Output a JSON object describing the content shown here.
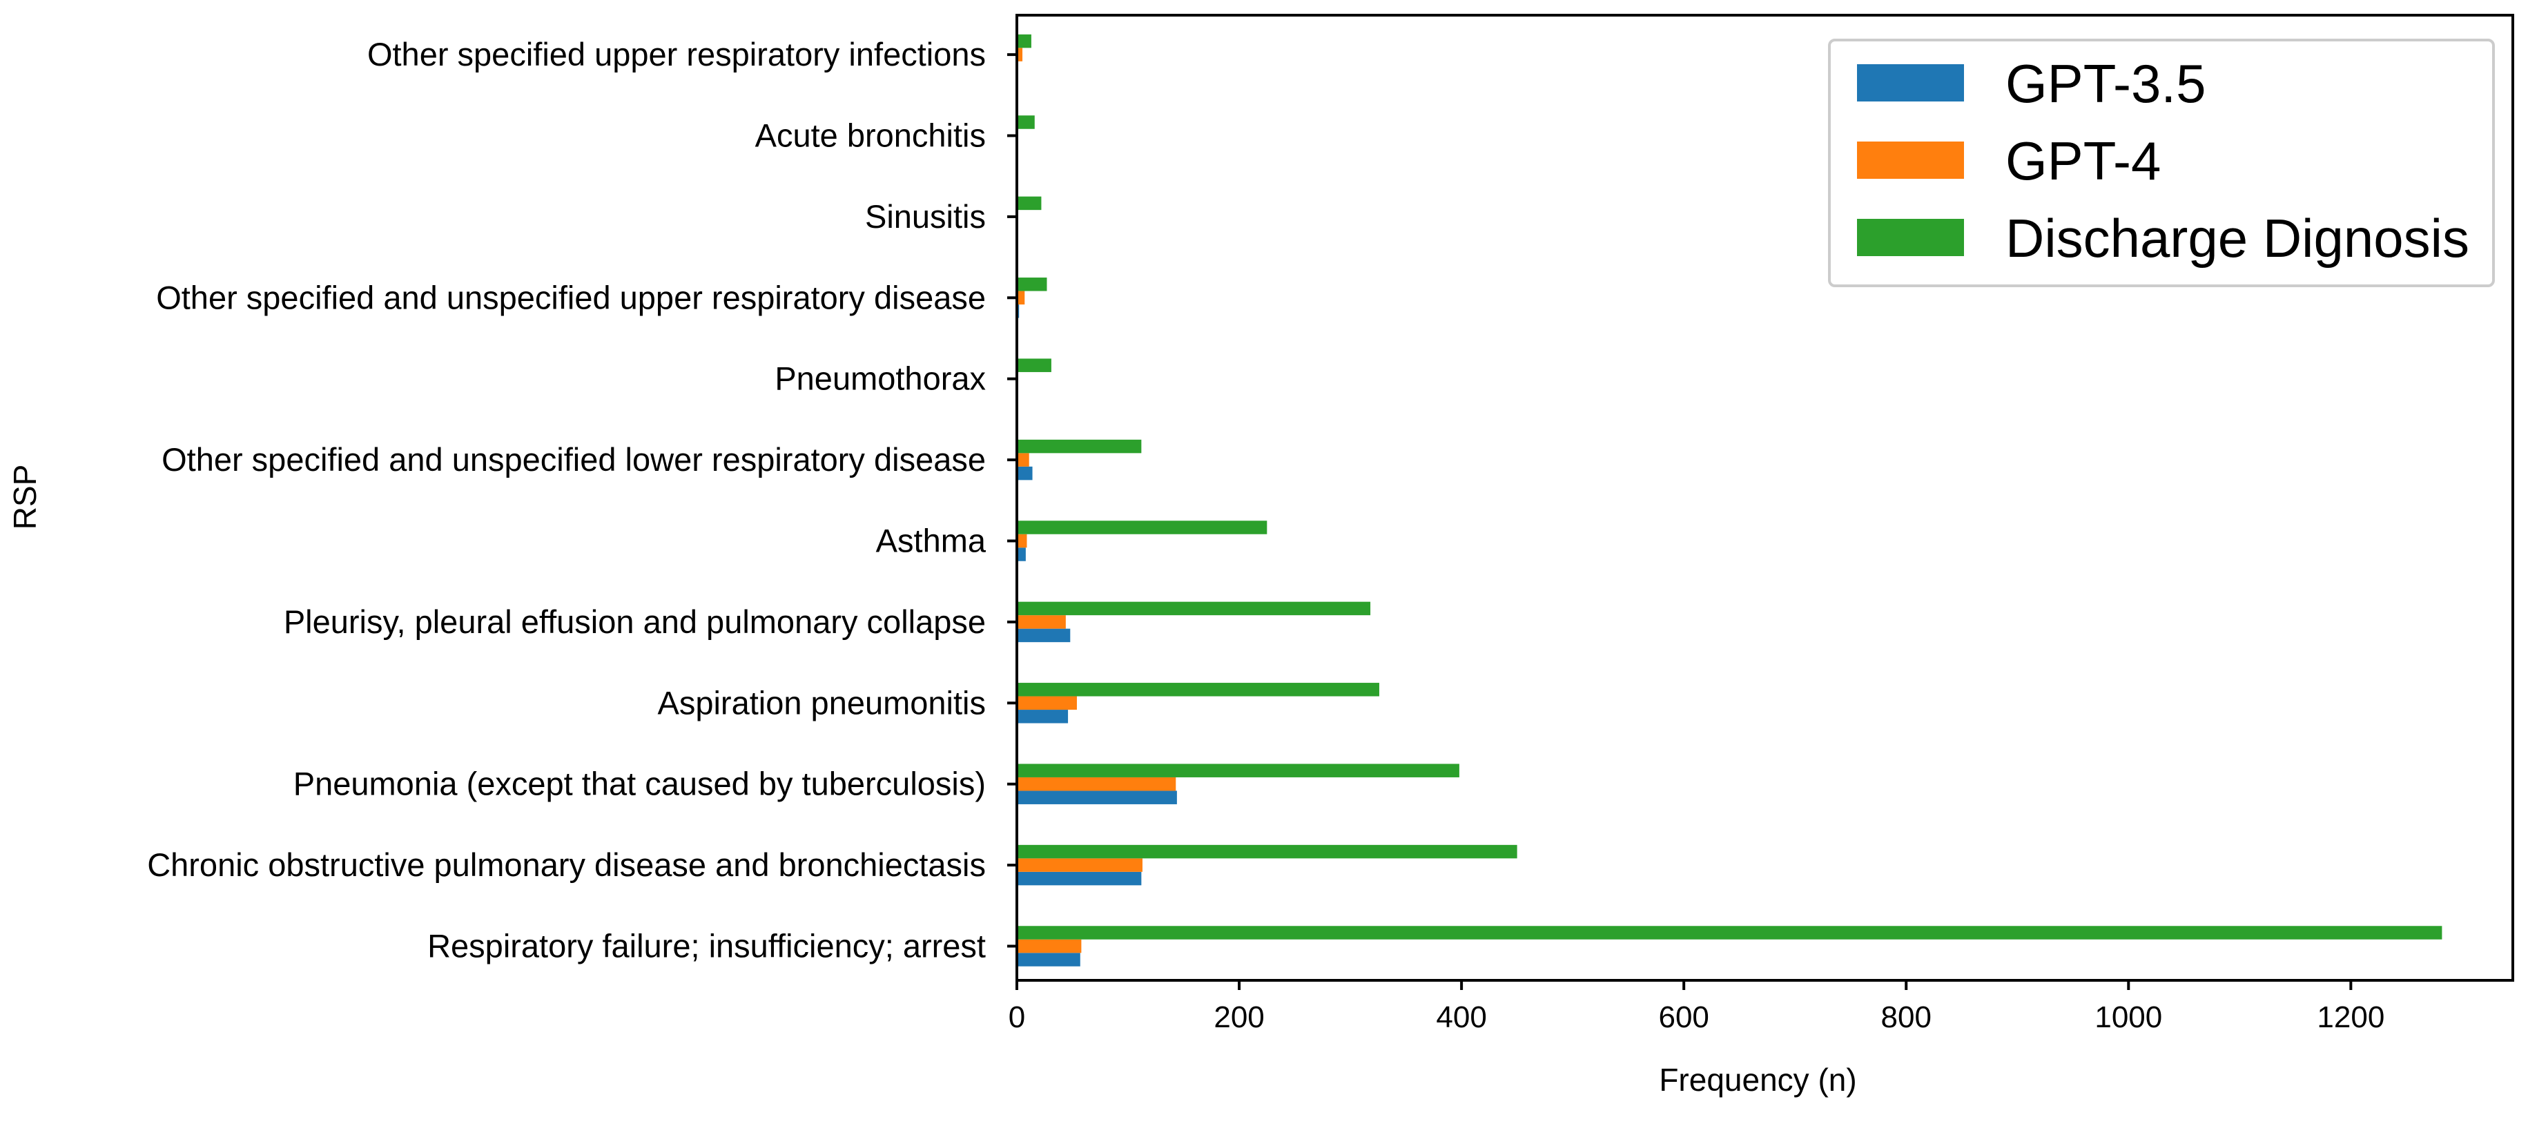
{
  "chart_data": {
    "type": "bar",
    "orientation": "horizontal",
    "title": "",
    "xlabel": "Frequency (n)",
    "ylabel": "RSP",
    "xlim": [
      0,
      1350
    ],
    "xticks": [
      0,
      200,
      400,
      600,
      800,
      1000,
      1200
    ],
    "grid": false,
    "legend_position": "top-right",
    "categories": [
      "Respiratory failure; insufficiency; arrest",
      "Chronic obstructive pulmonary disease and bronchiectasis",
      "Pneumonia (except that caused by tuberculosis)",
      "Aspiration pneumonitis",
      "Pleurisy, pleural effusion and pulmonary collapse",
      "Asthma",
      "Other specified and unspecified lower respiratory disease",
      "Pneumothorax",
      "Other specified and unspecified upper respiratory disease",
      "Sinusitis",
      "Acute bronchitis",
      "Other specified upper respiratory infections"
    ],
    "series": [
      {
        "name": "GPT-3.5",
        "color": "#1f77b4",
        "values": [
          57,
          112,
          144,
          46,
          48,
          8,
          14,
          1,
          2,
          1,
          1,
          1
        ]
      },
      {
        "name": "GPT-4",
        "color": "#ff7f0e",
        "values": [
          58,
          113,
          143,
          54,
          44,
          9,
          11,
          1,
          7,
          1,
          1,
          5
        ]
      },
      {
        "name": "Discharge Dignosis",
        "color": "#2ca02c",
        "values": [
          1282,
          450,
          398,
          326,
          318,
          225,
          112,
          31,
          27,
          22,
          16,
          13
        ]
      }
    ]
  }
}
